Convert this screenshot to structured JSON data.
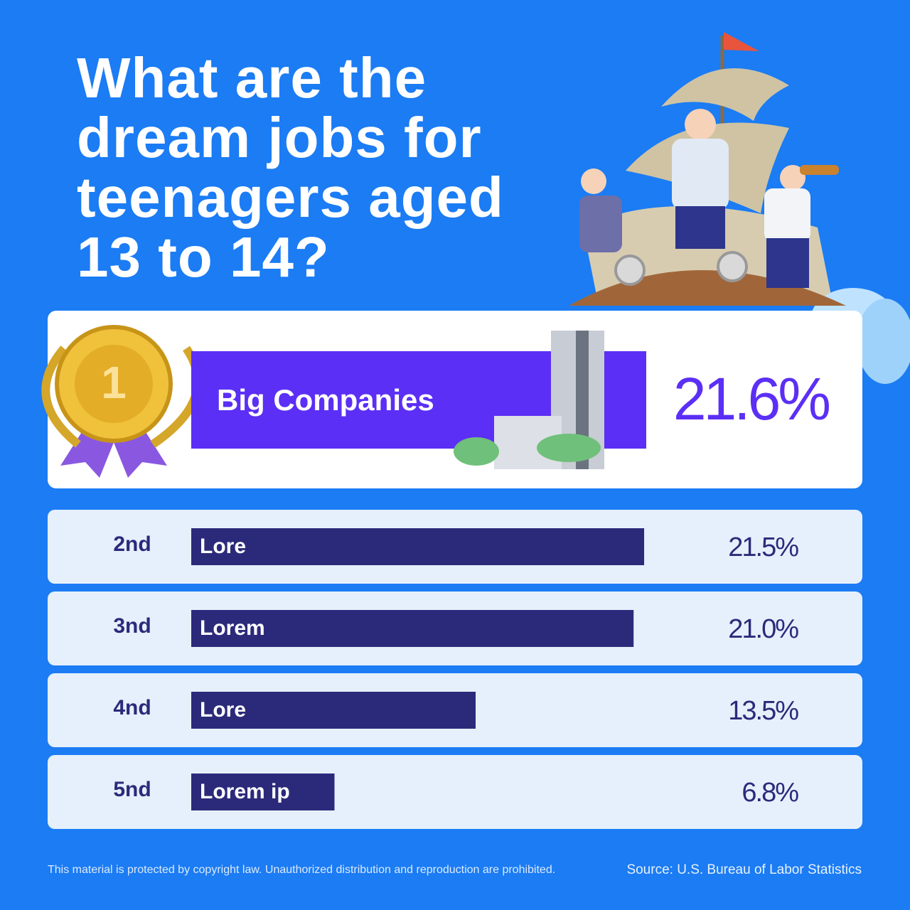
{
  "chart_data": {
    "type": "bar",
    "title": "What are the dream jobs for teenagers aged 13 to 14?",
    "rank_labels": [
      "1",
      "2nd",
      "3nd",
      "4nd",
      "5nd"
    ],
    "categories": [
      "Big Companies",
      "Lore",
      "Lorem",
      "Lore",
      "Lorem ip"
    ],
    "values": [
      21.6,
      21.5,
      21.0,
      13.5,
      6.8
    ],
    "value_labels": [
      "21.6%",
      "21.5%",
      "21.0%",
      "13.5%",
      "6.8%"
    ],
    "highlight_color": "#5b2ff5",
    "color": "#2b2a7a",
    "footnote": "This material is protected by copyright law. Unauthorized distribution and reproduction are prohibited.",
    "source": "Source: U.S. Bureau of Labor Statistics"
  }
}
